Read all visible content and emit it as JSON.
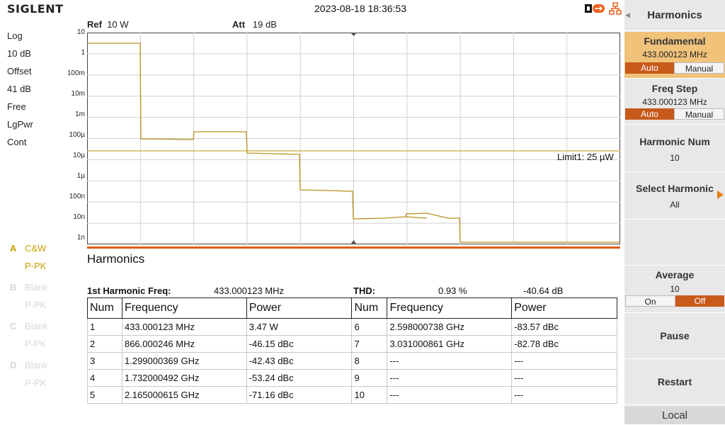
{
  "header": {
    "brand": "SIGLENT",
    "datetime": "2023-08-18 18:36:53"
  },
  "left_panel": {
    "items": [
      "Log",
      "10 dB",
      "Offset",
      "41 dB",
      "Free",
      "LgPwr",
      "Cont"
    ],
    "traces": [
      {
        "letter": "A",
        "mode": "C&W",
        "sub": "P-PK",
        "active": true
      },
      {
        "letter": "B",
        "mode": "Blank",
        "sub": "P-PK",
        "active": false
      },
      {
        "letter": "C",
        "mode": "Blank",
        "sub": "P-PK",
        "active": false
      },
      {
        "letter": "D",
        "mode": "Blank",
        "sub": "P-PK",
        "active": false
      }
    ]
  },
  "plot": {
    "ref_label": "Ref",
    "ref_value": "10 W",
    "att_label": "Att",
    "att_value": "19 dB",
    "y_ticks": [
      "10",
      "1",
      "100m",
      "10m",
      "1m",
      "100µ",
      "10µ",
      "1µ",
      "100n",
      "10n",
      "1n"
    ],
    "limit_label": "Limit1: 25 µW",
    "trace_color": "#b8901e",
    "limit_color": "#c8a83c",
    "trace_levels_exp": [
      0.6,
      -4.1,
      -3.7,
      -4.85,
      -6.4,
      -7.9,
      -7.6,
      -9.0
    ]
  },
  "harmonics": {
    "title": "Harmonics",
    "first_label": "1st Harmonic Freq:",
    "first_value": "433.000123 MHz",
    "thd_label": "THD:",
    "thd_percent": "0.93 %",
    "thd_db": "-40.64 dB",
    "columns": [
      "Num",
      "Frequency",
      "Power"
    ],
    "rows": [
      {
        "a": {
          "num": "1",
          "freq": "433.000123 MHz",
          "power": "3.47 W"
        },
        "b": {
          "num": "6",
          "freq": "2.598000738 GHz",
          "power": "-83.57 dBc"
        }
      },
      {
        "a": {
          "num": "2",
          "freq": "866.000246 MHz",
          "power": "-46.15 dBc"
        },
        "b": {
          "num": "7",
          "freq": "3.031000861 GHz",
          "power": "-82.78 dBc"
        }
      },
      {
        "a": {
          "num": "3",
          "freq": "1.299000369 GHz",
          "power": "-42.43 dBc"
        },
        "b": {
          "num": "8",
          "freq": "---",
          "power": "---"
        }
      },
      {
        "a": {
          "num": "4",
          "freq": "1.732000492 GHz",
          "power": "-53.24 dBc"
        },
        "b": {
          "num": "9",
          "freq": "---",
          "power": "---"
        }
      },
      {
        "a": {
          "num": "5",
          "freq": "2.165000615 GHz",
          "power": "-71.16 dBc"
        },
        "b": {
          "num": "10",
          "freq": "---",
          "power": "---"
        }
      }
    ]
  },
  "menu": {
    "title": "Harmonics",
    "fundamental": {
      "label": "Fundamental",
      "value": "433.000123 MHz",
      "auto": "Auto",
      "manual": "Manual"
    },
    "freq_step": {
      "label": "Freq Step",
      "value": "433.000123 MHz",
      "auto": "Auto",
      "manual": "Manual"
    },
    "harmonic_num": {
      "label": "Harmonic Num",
      "value": "10"
    },
    "select_harmonic": {
      "label": "Select Harmonic",
      "value": "All"
    },
    "average": {
      "label": "Average",
      "value": "10",
      "on": "On",
      "off": "Off"
    },
    "pause": "Pause",
    "restart": "Restart",
    "local": "Local"
  },
  "colors": {
    "accent_orange": "#c85a1c",
    "selected_key": "#f0c27a",
    "marker_bar": "#e05a10"
  }
}
